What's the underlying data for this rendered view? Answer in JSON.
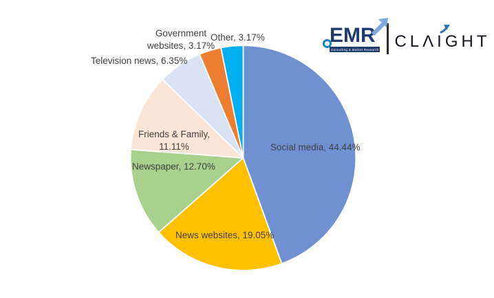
{
  "chart_data": {
    "type": "pie",
    "title": "",
    "unit": "%",
    "direction": "clockwise",
    "start_angle_deg": 0,
    "label_color": "#404040",
    "categories": [
      "Social media",
      "News websites",
      "Newspaper",
      "Friends & Family",
      "Television news",
      "Government websites",
      "Other"
    ],
    "values": [
      44.44,
      19.05,
      12.7,
      11.11,
      6.35,
      3.17,
      3.17
    ],
    "slices": [
      {
        "label": "Social media",
        "value": 44.44,
        "display": "Social media, 44.44%",
        "color": "#7091D1"
      },
      {
        "label": "News websites",
        "value": 19.05,
        "display": "News websites, 19.05%",
        "color": "#FFC000"
      },
      {
        "label": "Newspaper",
        "value": 12.7,
        "display": "Newspaper, 12.70%",
        "color": "#A9D18E"
      },
      {
        "label": "Friends & Family",
        "value": 11.11,
        "display": "Friends & Family, 11.11%",
        "color": "#FBE5D6"
      },
      {
        "label": "Television news",
        "value": 6.35,
        "display": "Television news, 6.35%",
        "color": "#DAE3F3"
      },
      {
        "label": "Government websites",
        "value": 3.17,
        "display": "Government websites, 3.17%",
        "color": "#ED7D31"
      },
      {
        "label": "Other",
        "value": 3.17,
        "display": "Other, 3.17%",
        "color": "#00B0F0"
      }
    ]
  },
  "logo": {
    "brand_left": "EMR",
    "tagline": "Consulting & Market Research",
    "brand_right": "CLAIGHT",
    "navy": "#1F3C6E",
    "accent_blue": "#2E75B6",
    "arrow_blue": "#7FA8DC"
  }
}
